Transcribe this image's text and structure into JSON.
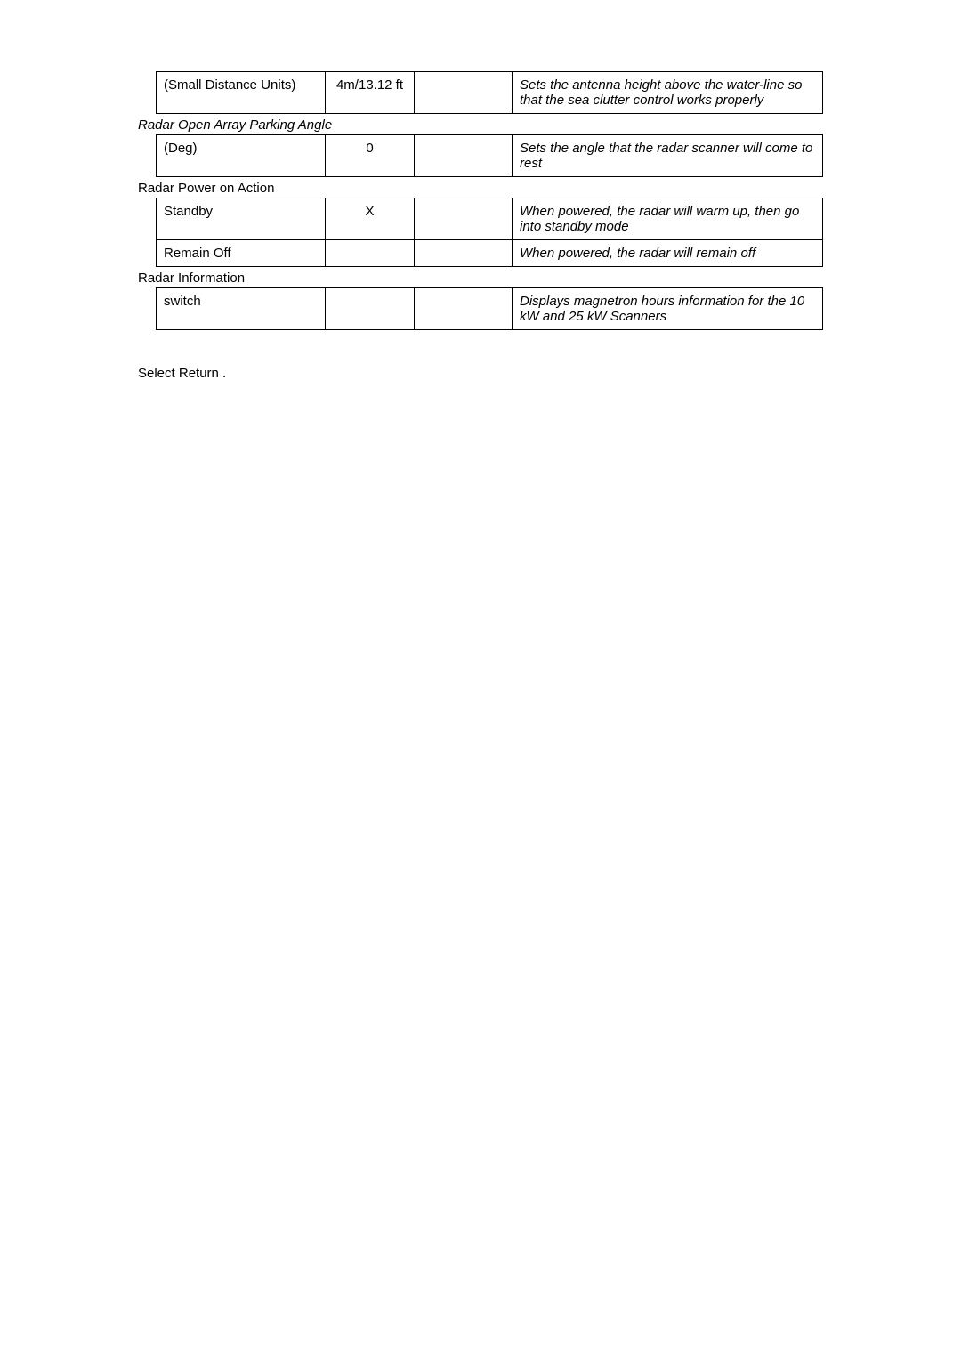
{
  "tables": {
    "t1": {
      "row1": {
        "c1": "(Small Distance Units)",
        "c2": "4m/13.12 ft",
        "c3": "",
        "c4": "Sets the antenna height above the water-line so that the sea clutter control works properly"
      }
    },
    "section2_label": "Radar Open Array Parking Angle",
    "t2": {
      "row1": {
        "c1": "(Deg)",
        "c2": "0",
        "c3": "",
        "c4": "Sets the angle that the radar scanner will come to rest"
      }
    },
    "section3_label": "Radar Power on Action",
    "t3": {
      "row1": {
        "c1": "Standby",
        "c2": "X",
        "c3": "",
        "c4": "When powered, the radar will warm up, then go into standby mode"
      },
      "row2": {
        "c1": "Remain Off",
        "c2": "",
        "c3": "",
        "c4": "When powered, the radar will remain off"
      }
    },
    "section4_label": "Radar Information",
    "t4": {
      "row1": {
        "c1": "switch",
        "c2": "",
        "c3": "",
        "c4": "Displays magnetron hours information  for the  10 kW and 25 kW Scanners"
      }
    }
  },
  "footer": "Select Return  ."
}
